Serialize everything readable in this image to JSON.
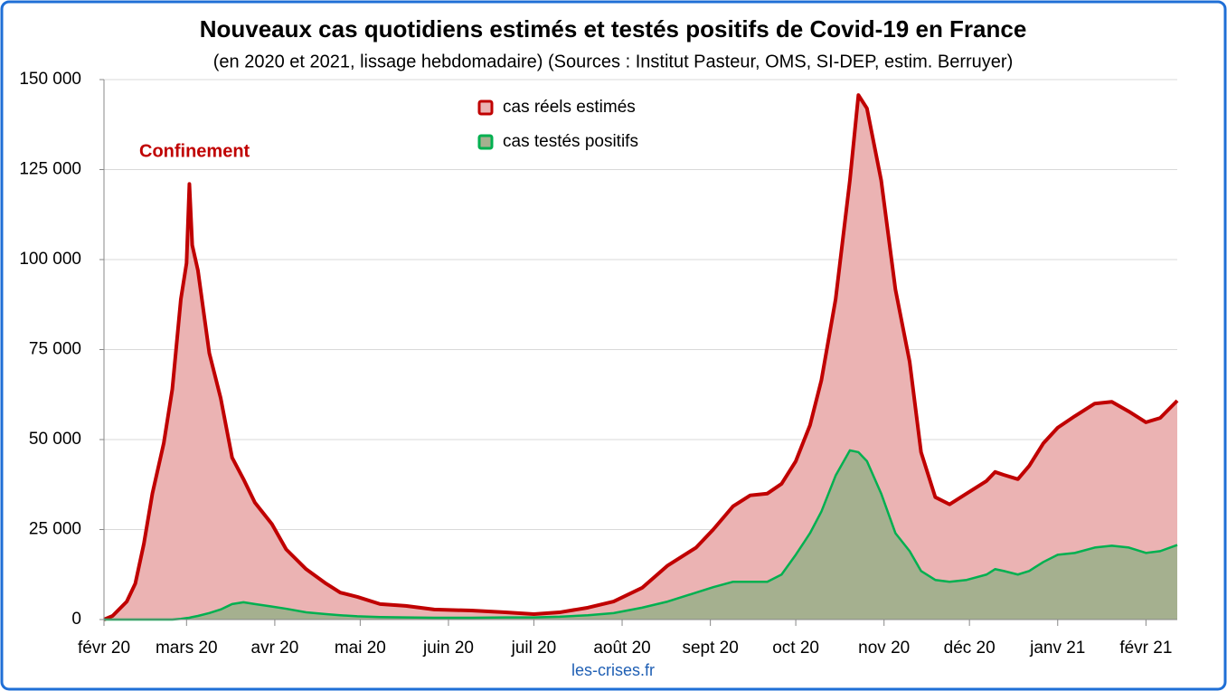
{
  "chart_data": {
    "type": "area",
    "title": "Nouveaux cas quotidiens estimés et testés positifs de Covid-19 en France",
    "subtitle": "(en 2020 et 2021, lissage hebdomadaire) (Sources : Institut Pasteur, OMS, SI-DEP, estim. Berruyer)",
    "annotation": "Confinement",
    "source": "les-crises.fr",
    "x": [
      0,
      3,
      8,
      11,
      14,
      17,
      21,
      24,
      27,
      29,
      30,
      31,
      33,
      37,
      41,
      45,
      49,
      53,
      59,
      64,
      71,
      78,
      83,
      89,
      97,
      106,
      116,
      129,
      141,
      151,
      160,
      170,
      179,
      189,
      198,
      208,
      214,
      221,
      227,
      233,
      238,
      243,
      248,
      252,
      257,
      262,
      265,
      268,
      273,
      278,
      283,
      287,
      292,
      297,
      303,
      310,
      313,
      316,
      321,
      325,
      330,
      335,
      341,
      348,
      354,
      360,
      366,
      371,
      377
    ],
    "series": [
      {
        "name": "cas réels estimés",
        "color": "#c00000",
        "fill": "#ebb3b3",
        "values": [
          0,
          1000,
          5000,
          10000,
          21000,
          35000,
          49000,
          64000,
          89000,
          99000,
          121000,
          104000,
          97000,
          74000,
          61500,
          45000,
          39000,
          32500,
          26500,
          19500,
          14000,
          10000,
          7500,
          6300,
          4300,
          3800,
          2800,
          2500,
          2000,
          1500,
          2000,
          3300,
          5000,
          8800,
          15000,
          20000,
          25000,
          31500,
          34500,
          35000,
          37700,
          44000,
          54000,
          66500,
          89000,
          122000,
          145700,
          142000,
          122000,
          91700,
          71600,
          46500,
          34000,
          32000,
          35000,
          38500,
          41000,
          40200,
          39000,
          42700,
          49000,
          53300,
          56500,
          60000,
          60500,
          57800,
          54800,
          56000,
          60800
        ]
      },
      {
        "name": "cas testés positifs",
        "color": "#00b050",
        "fill": "#a5b08f",
        "values": [
          0,
          0,
          0,
          0,
          0,
          0,
          0,
          0,
          200,
          400,
          500,
          700,
          1000,
          1800,
          2800,
          4300,
          4800,
          4300,
          3600,
          3000,
          2000,
          1500,
          1200,
          900,
          700,
          600,
          500,
          500,
          600,
          600,
          800,
          1200,
          1800,
          3300,
          5000,
          7500,
          9000,
          10500,
          10500,
          10500,
          12500,
          18000,
          24000,
          30000,
          40000,
          47000,
          46500,
          44000,
          35000,
          24000,
          19000,
          13500,
          11000,
          10500,
          11000,
          12500,
          14000,
          13500,
          12500,
          13500,
          16000,
          18000,
          18500,
          20000,
          20500,
          20000,
          18500,
          19000,
          20700
        ]
      }
    ],
    "xlim": [
      0,
      377
    ],
    "xticks": [
      {
        "value": 0,
        "label": "févr 20"
      },
      {
        "value": 29,
        "label": "mars 20"
      },
      {
        "value": 60,
        "label": "avr 20"
      },
      {
        "value": 90,
        "label": "mai 20"
      },
      {
        "value": 121,
        "label": "juin 20"
      },
      {
        "value": 151,
        "label": "juil 20"
      },
      {
        "value": 182,
        "label": "août 20"
      },
      {
        "value": 213,
        "label": "sept 20"
      },
      {
        "value": 243,
        "label": "oct 20"
      },
      {
        "value": 274,
        "label": "nov 20"
      },
      {
        "value": 304,
        "label": "déc 20"
      },
      {
        "value": 335,
        "label": "janv 21"
      },
      {
        "value": 366,
        "label": "févr 21"
      }
    ],
    "ylim": [
      0,
      150000
    ],
    "yticks": [
      0,
      {
        "value": 25000,
        "label": "25 000"
      },
      {
        "value": 50000,
        "label": "50 000"
      },
      {
        "value": 75000,
        "label": "75 000"
      },
      {
        "value": 100000,
        "label": "100 000"
      },
      {
        "value": 125000,
        "label": "125 000"
      },
      {
        "value": 150000,
        "label": "150 000"
      }
    ],
    "grid": true
  }
}
